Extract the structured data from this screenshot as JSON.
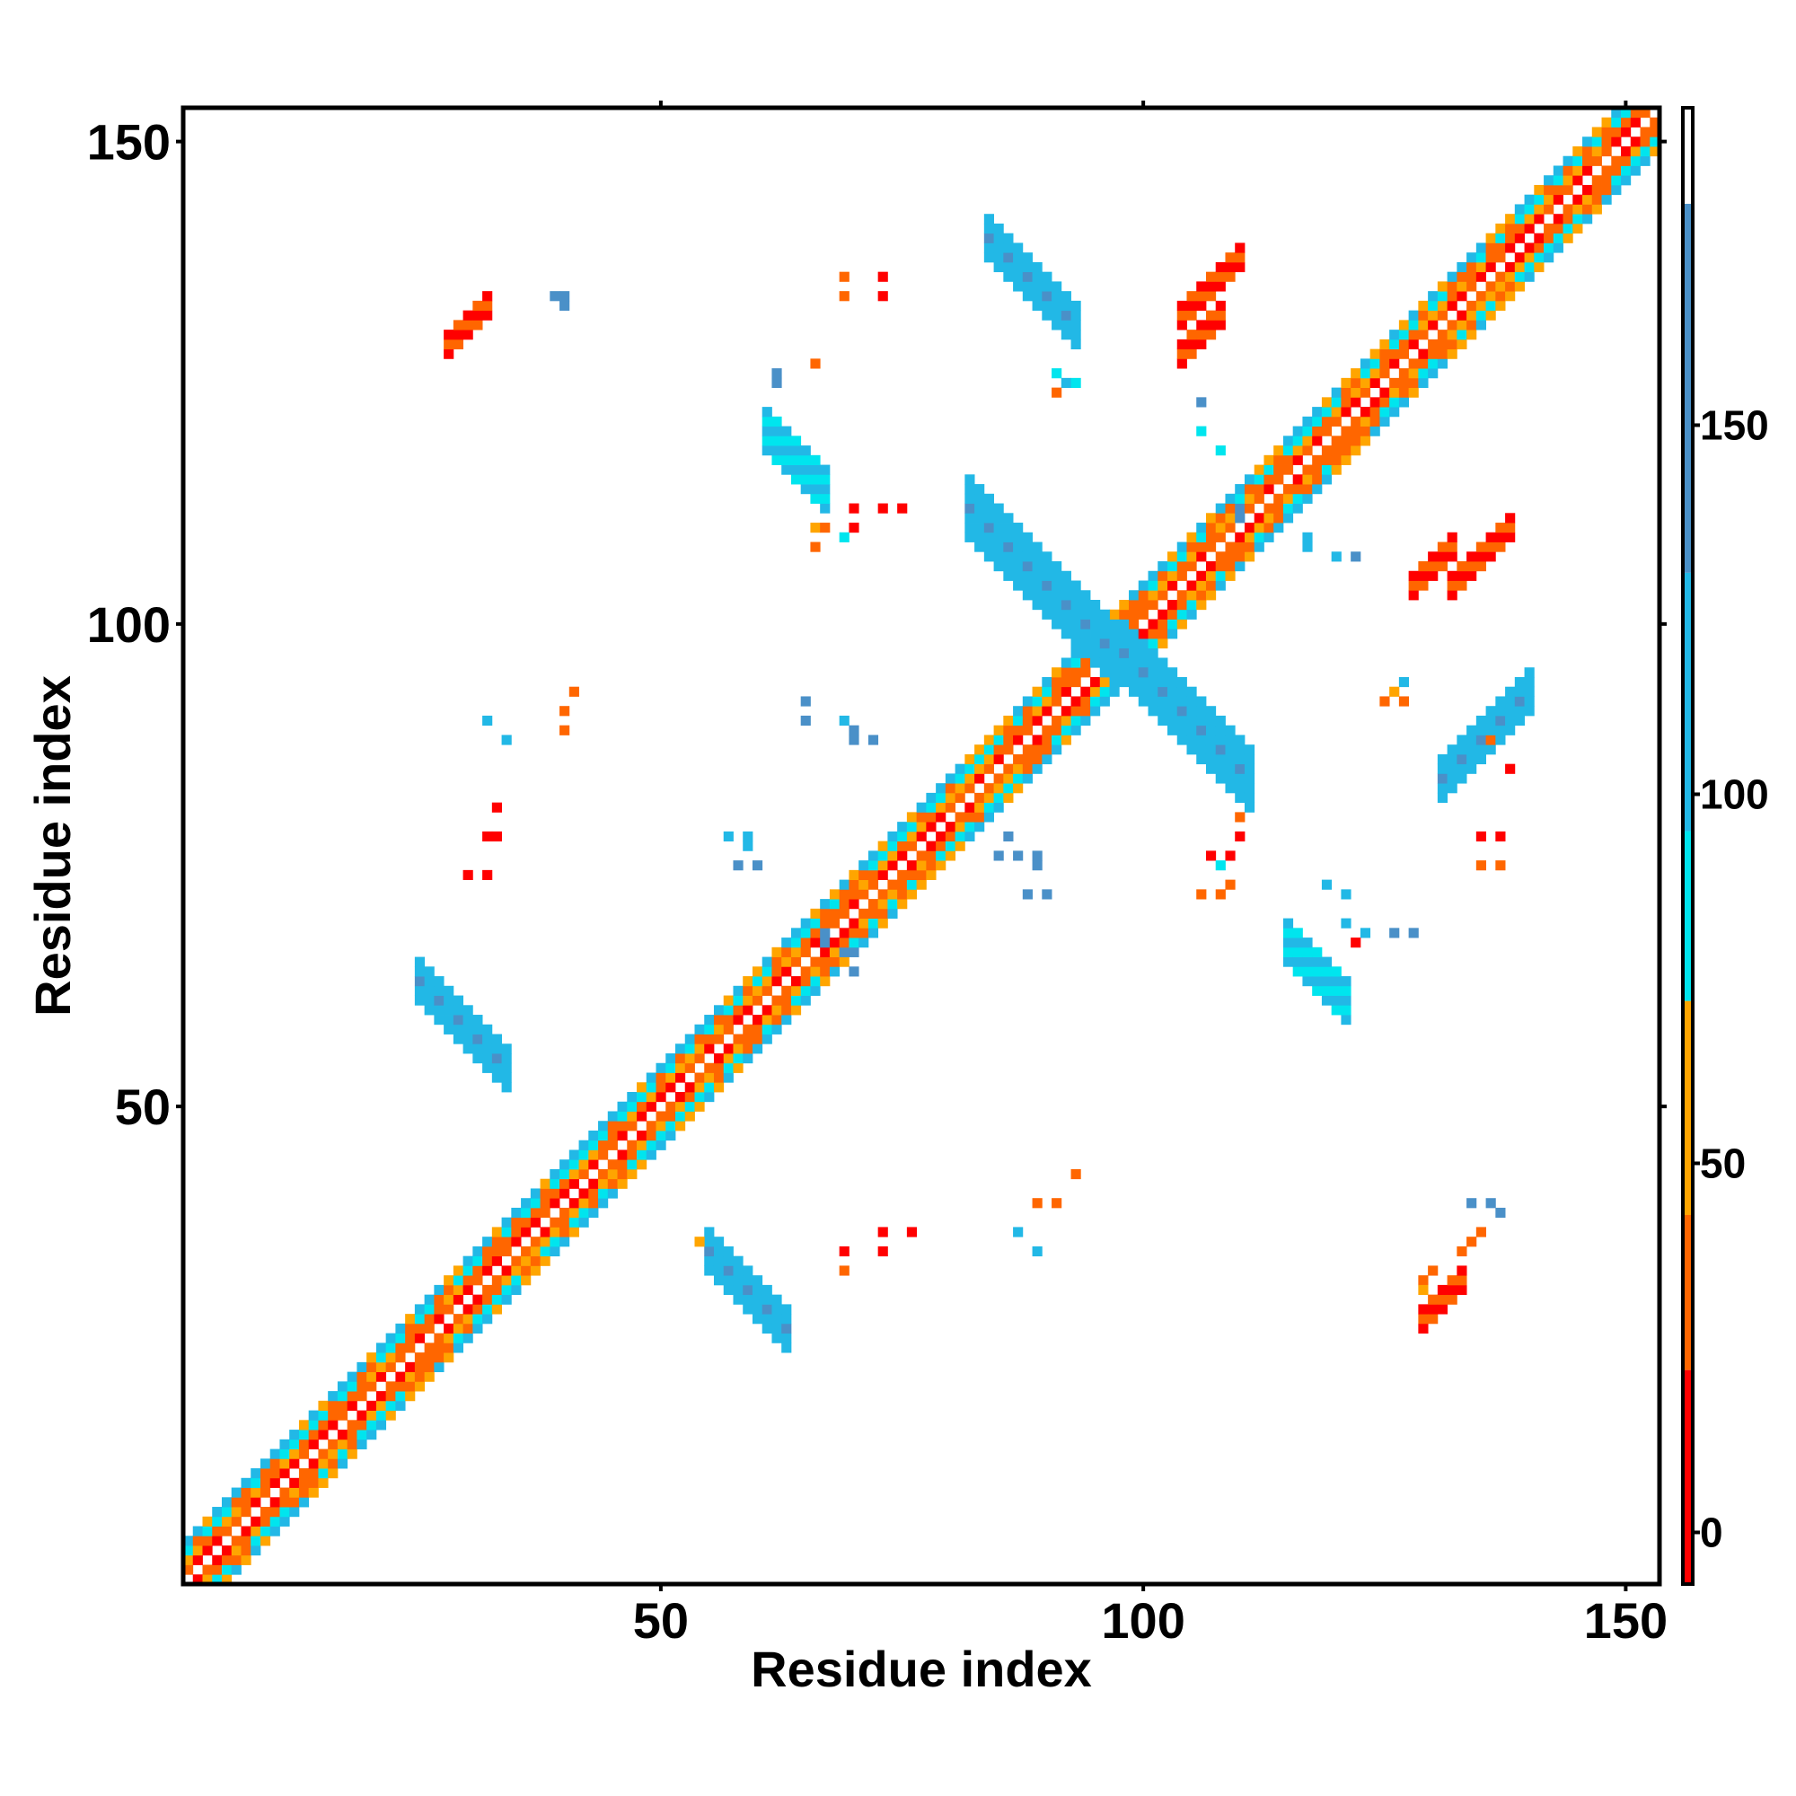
{
  "chart_data": {
    "type": "heatmap",
    "title": "",
    "xlabel": "Residue index",
    "ylabel": "Residue index",
    "xlim": [
      1,
      153
    ],
    "ylim": [
      1,
      153
    ],
    "x_ticks": [
      50,
      100,
      150
    ],
    "y_ticks": [
      50,
      100,
      150
    ],
    "grid": false,
    "legend": "right",
    "colorbar": {
      "ticks": [
        0,
        50,
        100,
        150
      ],
      "range": [
        -7,
        193
      ],
      "bands": [
        {
          "from": -7,
          "to": 22,
          "color": "#ff0000"
        },
        {
          "from": 22,
          "to": 43,
          "color": "#ff6600"
        },
        {
          "from": 43,
          "to": 72,
          "color": "#ffa500"
        },
        {
          "from": 72,
          "to": 95,
          "color": "#00e5ee"
        },
        {
          "from": 95,
          "to": 130,
          "color": "#22b8e6"
        },
        {
          "from": 130,
          "to": 180,
          "color": "#4a90c8"
        },
        {
          "from": 180,
          "to": 193,
          "color": "#ffffff"
        }
      ]
    },
    "features": [
      {
        "kind": "band",
        "from": [
          1,
          1
        ],
        "to": [
          153,
          153
        ],
        "width": 4,
        "palette": "helix"
      },
      {
        "kind": "band",
        "from": [
          25,
          63
        ],
        "to": [
          34,
          55
        ],
        "width": 2,
        "palette": "blue"
      },
      {
        "kind": "band",
        "from": [
          55,
          35
        ],
        "to": [
          62,
          27
        ],
        "width": 2,
        "palette": "blue"
      },
      {
        "kind": "band",
        "from": [
          84,
          140
        ],
        "to": [
          93,
          131
        ],
        "width": 2,
        "palette": "blue"
      },
      {
        "kind": "band",
        "from": [
          131,
          84
        ],
        "to": [
          140,
          93
        ],
        "width": 2,
        "palette": "blue"
      },
      {
        "kind": "band",
        "from": [
          82,
          112
        ],
        "to": [
          97,
          98
        ],
        "width": 3,
        "palette": "blue"
      },
      {
        "kind": "band",
        "from": [
          98,
          97
        ],
        "to": [
          111,
          84
        ],
        "width": 3,
        "palette": "blue"
      },
      {
        "kind": "band",
        "from": [
          61,
          120
        ],
        "to": [
          67,
          115
        ],
        "width": 2,
        "palette": "cyan"
      },
      {
        "kind": "band",
        "from": [
          115,
          67
        ],
        "to": [
          120,
          61
        ],
        "width": 2,
        "palette": "cyan"
      },
      {
        "kind": "band",
        "from": [
          28,
          129
        ],
        "to": [
          32,
          133
        ],
        "width": 1,
        "palette": "orange"
      },
      {
        "kind": "band",
        "from": [
          129,
          28
        ],
        "to": [
          133,
          32
        ],
        "width": 1,
        "palette": "orange"
      },
      {
        "kind": "band",
        "from": [
          104,
          132
        ],
        "to": [
          110,
          136
        ],
        "width": 1,
        "palette": "orange"
      },
      {
        "kind": "band",
        "from": [
          132,
          104
        ],
        "to": [
          136,
          110
        ],
        "width": 1,
        "palette": "orange"
      },
      {
        "kind": "band",
        "from": [
          128,
          104
        ],
        "to": [
          132,
          108
        ],
        "width": 1,
        "palette": "orange"
      },
      {
        "kind": "band",
        "from": [
          104,
          128
        ],
        "to": [
          108,
          132
        ],
        "width": 1,
        "palette": "orange"
      }
    ],
    "spots": [
      {
        "x": 39,
        "y": 134,
        "v": 160
      },
      {
        "x": 40,
        "y": 134,
        "v": 160
      },
      {
        "x": 40,
        "y": 133,
        "v": 160
      },
      {
        "x": 62,
        "y": 126,
        "v": 160
      },
      {
        "x": 62,
        "y": 125,
        "v": 160
      },
      {
        "x": 66,
        "y": 127,
        "v": 30
      },
      {
        "x": 69,
        "y": 136,
        "v": 35
      },
      {
        "x": 73,
        "y": 136,
        "v": 10
      },
      {
        "x": 69,
        "y": 134,
        "v": 35
      },
      {
        "x": 73,
        "y": 134,
        "v": 10
      },
      {
        "x": 91,
        "y": 126,
        "v": 85
      },
      {
        "x": 92,
        "y": 125,
        "v": 120
      },
      {
        "x": 93,
        "y": 125,
        "v": 85
      },
      {
        "x": 91,
        "y": 124,
        "v": 40
      },
      {
        "x": 106,
        "y": 123,
        "v": 160
      },
      {
        "x": 106,
        "y": 120,
        "v": 90
      },
      {
        "x": 108,
        "y": 118,
        "v": 90
      },
      {
        "x": 110,
        "y": 112,
        "v": 140
      },
      {
        "x": 110,
        "y": 111,
        "v": 140
      },
      {
        "x": 117,
        "y": 109,
        "v": 100
      },
      {
        "x": 117,
        "y": 108,
        "v": 100
      },
      {
        "x": 120,
        "y": 107,
        "v": 110
      },
      {
        "x": 122,
        "y": 107,
        "v": 140
      },
      {
        "x": 66,
        "y": 110,
        "v": 45
      },
      {
        "x": 67,
        "y": 110,
        "v": 30
      },
      {
        "x": 66,
        "y": 108,
        "v": 40
      },
      {
        "x": 69,
        "y": 109,
        "v": 85
      },
      {
        "x": 70,
        "y": 110,
        "v": 10
      },
      {
        "x": 70,
        "y": 112,
        "v": 10
      },
      {
        "x": 73,
        "y": 112,
        "v": 10
      },
      {
        "x": 75,
        "y": 112,
        "v": 20
      },
      {
        "x": 41,
        "y": 93,
        "v": 35
      },
      {
        "x": 40,
        "y": 91,
        "v": 40
      },
      {
        "x": 40,
        "y": 89,
        "v": 25
      },
      {
        "x": 32,
        "y": 90,
        "v": 110
      },
      {
        "x": 34,
        "y": 88,
        "v": 110
      },
      {
        "x": 65,
        "y": 92,
        "v": 160
      },
      {
        "x": 65,
        "y": 90,
        "v": 140
      },
      {
        "x": 69,
        "y": 90,
        "v": 120
      },
      {
        "x": 70,
        "y": 89,
        "v": 140
      },
      {
        "x": 70,
        "y": 88,
        "v": 140
      },
      {
        "x": 72,
        "y": 88,
        "v": 150
      },
      {
        "x": 33,
        "y": 81,
        "v": 10
      },
      {
        "x": 32,
        "y": 78,
        "v": 10
      },
      {
        "x": 33,
        "y": 78,
        "v": 15
      },
      {
        "x": 30,
        "y": 74,
        "v": 10
      },
      {
        "x": 32,
        "y": 74,
        "v": 15
      },
      {
        "x": 57,
        "y": 78,
        "v": 110
      },
      {
        "x": 59,
        "y": 78,
        "v": 110
      },
      {
        "x": 59,
        "y": 77,
        "v": 110
      },
      {
        "x": 58,
        "y": 75,
        "v": 160
      },
      {
        "x": 60,
        "y": 75,
        "v": 160
      },
      {
        "x": 67,
        "y": 68,
        "v": 150
      },
      {
        "x": 67,
        "y": 67,
        "v": 150
      },
      {
        "x": 69,
        "y": 66,
        "v": 140
      },
      {
        "x": 70,
        "y": 66,
        "v": 140
      },
      {
        "x": 70,
        "y": 64,
        "v": 140
      },
      {
        "x": 86,
        "y": 78,
        "v": 140
      },
      {
        "x": 85,
        "y": 76,
        "v": 160
      },
      {
        "x": 87,
        "y": 76,
        "v": 160
      },
      {
        "x": 89,
        "y": 76,
        "v": 160
      },
      {
        "x": 89,
        "y": 75,
        "v": 160
      },
      {
        "x": 88,
        "y": 72,
        "v": 160
      },
      {
        "x": 90,
        "y": 72,
        "v": 140
      },
      {
        "x": 110,
        "y": 80,
        "v": 40
      },
      {
        "x": 110,
        "y": 78,
        "v": 10
      },
      {
        "x": 107,
        "y": 76,
        "v": 10
      },
      {
        "x": 109,
        "y": 76,
        "v": 10
      },
      {
        "x": 108,
        "y": 75,
        "v": 85
      },
      {
        "x": 106,
        "y": 72,
        "v": 35
      },
      {
        "x": 108,
        "y": 72,
        "v": 35
      },
      {
        "x": 109,
        "y": 73,
        "v": 35
      },
      {
        "x": 119,
        "y": 73,
        "v": 100
      },
      {
        "x": 121,
        "y": 72,
        "v": 120
      },
      {
        "x": 121,
        "y": 69,
        "v": 110
      },
      {
        "x": 123,
        "y": 68,
        "v": 100
      },
      {
        "x": 122,
        "y": 67,
        "v": 20
      },
      {
        "x": 126,
        "y": 68,
        "v": 140
      },
      {
        "x": 128,
        "y": 68,
        "v": 140
      },
      {
        "x": 135,
        "y": 78,
        "v": 10
      },
      {
        "x": 137,
        "y": 78,
        "v": 10
      },
      {
        "x": 135,
        "y": 75,
        "v": 30
      },
      {
        "x": 137,
        "y": 75,
        "v": 25
      },
      {
        "x": 136,
        "y": 88,
        "v": 35
      },
      {
        "x": 138,
        "y": 85,
        "v": 15
      },
      {
        "x": 125,
        "y": 92,
        "v": 40
      },
      {
        "x": 127,
        "y": 92,
        "v": 30
      },
      {
        "x": 126,
        "y": 93,
        "v": 60
      },
      {
        "x": 127,
        "y": 94,
        "v": 100
      },
      {
        "x": 93,
        "y": 43,
        "v": 40
      },
      {
        "x": 91,
        "y": 40,
        "v": 35
      },
      {
        "x": 89,
        "y": 40,
        "v": 35
      },
      {
        "x": 134,
        "y": 40,
        "v": 140
      },
      {
        "x": 136,
        "y": 40,
        "v": 140
      },
      {
        "x": 137,
        "y": 39,
        "v": 140
      },
      {
        "x": 69,
        "y": 35,
        "v": 15
      },
      {
        "x": 69,
        "y": 33,
        "v": 25
      },
      {
        "x": 73,
        "y": 37,
        "v": 10
      },
      {
        "x": 73,
        "y": 35,
        "v": 15
      },
      {
        "x": 76,
        "y": 37,
        "v": 10
      },
      {
        "x": 87,
        "y": 37,
        "v": 120
      },
      {
        "x": 89,
        "y": 35,
        "v": 110
      },
      {
        "x": 54,
        "y": 36,
        "v": 60
      },
      {
        "x": 129,
        "y": 32,
        "v": 30
      },
      {
        "x": 130,
        "y": 33,
        "v": 30
      },
      {
        "x": 129,
        "y": 31,
        "v": 45
      },
      {
        "x": 133,
        "y": 35,
        "v": 30
      },
      {
        "x": 134,
        "y": 36,
        "v": 30
      },
      {
        "x": 135,
        "y": 37,
        "v": 40
      }
    ]
  }
}
